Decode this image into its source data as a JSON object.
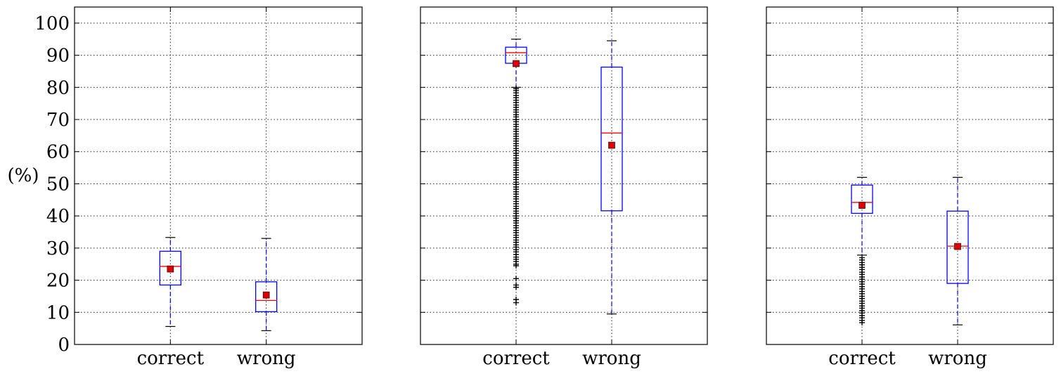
{
  "figure": {
    "ylabel": "(%)",
    "y_ticks": [
      0,
      10,
      20,
      30,
      40,
      50,
      60,
      70,
      80,
      90,
      100
    ],
    "shared_y": true
  },
  "chart_data": [
    {
      "type": "box",
      "categories": [
        "correct",
        "wrong"
      ],
      "ylim": [
        0,
        105
      ],
      "grid": true,
      "legend": "none",
      "colors": {
        "box": "#0000ff",
        "median": "#ff0000",
        "mean": "#dd0000",
        "flier": "#000000"
      },
      "boxes": [
        {
          "label": "correct",
          "whisker_low": 5.6,
          "q1": 18.5,
          "median": 24.3,
          "q3": 29.0,
          "whisker_high": 33.3,
          "mean": 23.5,
          "outliers": []
        },
        {
          "label": "wrong",
          "whisker_low": 4.3,
          "q1": 10.2,
          "median": 13.7,
          "q3": 19.5,
          "whisker_high": 33.0,
          "mean": 15.4,
          "outliers": []
        }
      ]
    },
    {
      "type": "box",
      "categories": [
        "correct",
        "wrong"
      ],
      "ylim": [
        0,
        105
      ],
      "grid": true,
      "legend": "none",
      "colors": {
        "box": "#0000ff",
        "median": "#ff0000",
        "mean": "#dd0000",
        "flier": "#000000"
      },
      "boxes": [
        {
          "label": "correct",
          "whisker_low": 80.0,
          "q1": 87.5,
          "median": 90.8,
          "q3": 92.5,
          "whisker_high": 95.0,
          "mean": 87.4,
          "outliers": [
            13.0,
            14.0,
            17.8,
            18.5,
            20.5,
            24.5,
            25.0,
            25.8,
            26.5,
            27.2,
            28.0,
            28.8,
            29.5,
            30.3,
            31.0,
            31.8,
            32.5,
            33.3,
            34.0,
            34.8,
            35.5,
            36.3,
            37.0,
            37.8,
            38.5,
            39.3,
            40.0,
            40.8,
            41.5,
            42.3,
            43.0,
            43.8,
            44.5,
            45.3,
            46.0,
            46.8,
            47.5,
            48.3,
            49.0,
            49.8,
            50.5,
            51.3,
            52.0,
            52.8,
            53.5,
            54.3,
            55.0,
            55.8,
            56.5,
            57.3,
            58.0,
            58.8,
            59.5,
            60.3,
            61.0,
            61.8,
            62.5,
            63.3,
            64.0,
            64.8,
            65.5,
            66.3,
            67.0,
            67.8,
            68.5,
            69.3,
            70.0,
            70.8,
            71.5,
            72.3,
            73.0,
            73.8,
            74.5,
            75.3,
            76.0,
            76.8,
            77.5,
            78.3,
            79.0,
            79.6
          ]
        },
        {
          "label": "wrong",
          "whisker_low": 9.5,
          "q1": 41.6,
          "median": 65.8,
          "q3": 86.3,
          "whisker_high": 94.5,
          "mean": 62.0,
          "outliers": []
        }
      ]
    },
    {
      "type": "box",
      "categories": [
        "correct",
        "wrong"
      ],
      "ylim": [
        0,
        105
      ],
      "grid": true,
      "legend": "none",
      "colors": {
        "box": "#0000ff",
        "median": "#ff0000",
        "mean": "#dd0000",
        "flier": "#000000"
      },
      "boxes": [
        {
          "label": "correct",
          "whisker_low": 27.8,
          "q1": 40.8,
          "median": 44.2,
          "q3": 49.6,
          "whisker_high": 52.0,
          "mean": 43.3,
          "outliers": [
            6.8,
            7.5,
            8.3,
            9.0,
            9.8,
            10.5,
            11.3,
            12.0,
            12.8,
            13.5,
            14.3,
            15.0,
            15.8,
            16.5,
            17.3,
            18.0,
            18.8,
            19.5,
            20.3,
            21.0,
            21.8,
            22.5,
            23.3,
            24.0,
            24.8,
            25.5,
            26.3,
            27.0
          ]
        },
        {
          "label": "wrong",
          "whisker_low": 6.1,
          "q1": 19.0,
          "median": 30.6,
          "q3": 41.5,
          "whisker_high": 52.0,
          "mean": 30.5,
          "outliers": []
        }
      ]
    }
  ]
}
